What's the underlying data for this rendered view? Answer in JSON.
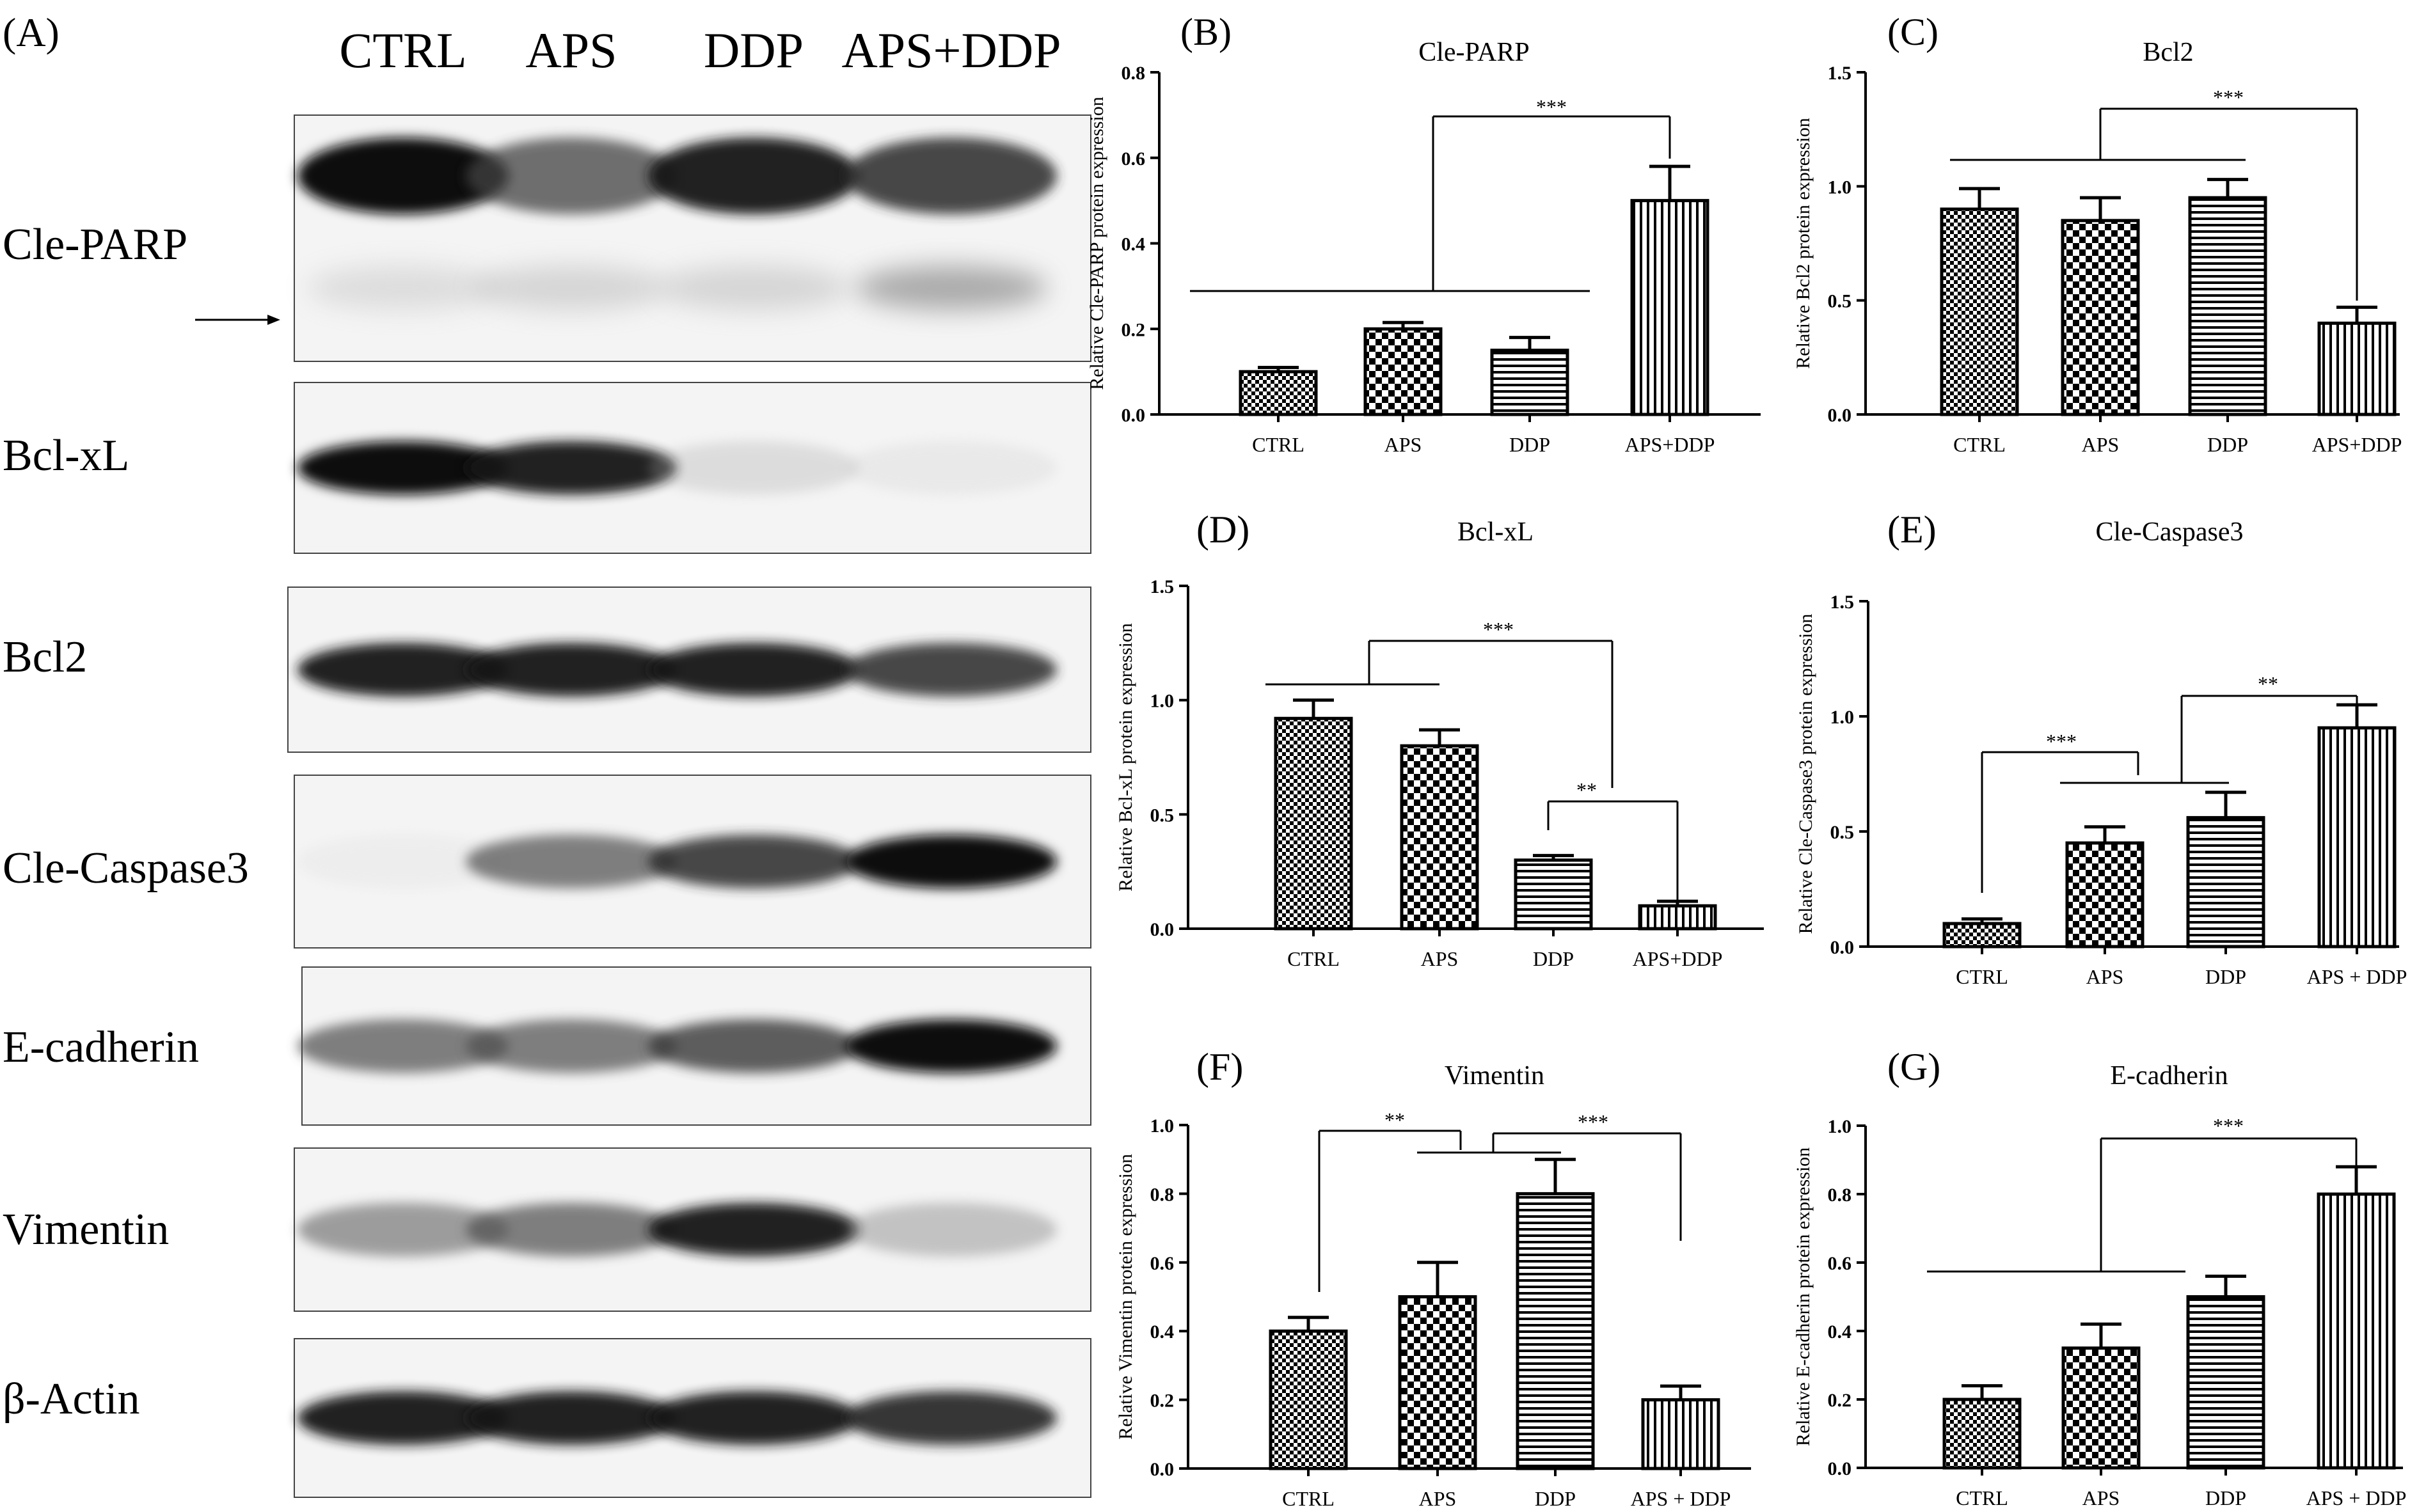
{
  "panel_a": {
    "label": "(A)",
    "columns": [
      "CTRL",
      "APS",
      "DDP",
      "APS+DDP"
    ],
    "rows": [
      {
        "label": "Cle-PARP",
        "intensity": [
          1.0,
          0.75,
          0.95,
          0.85
        ],
        "second_band": [
          0.3,
          0.35,
          0.35,
          0.55
        ],
        "arrow": true
      },
      {
        "label": "Bcl-xL",
        "intensity": [
          1.0,
          0.95,
          0.3,
          0.15
        ],
        "second_band": null,
        "arrow": false
      },
      {
        "label": "Bcl2",
        "intensity": [
          0.95,
          0.95,
          0.95,
          0.85
        ],
        "second_band": null,
        "arrow": false
      },
      {
        "label": "Cle-Caspase3",
        "intensity": [
          0.08,
          0.7,
          0.85,
          1.0
        ],
        "second_band": null,
        "arrow": false
      },
      {
        "label": "E-cadherin",
        "intensity": [
          0.7,
          0.7,
          0.8,
          1.0
        ],
        "second_band": null,
        "arrow": false
      },
      {
        "label": "Vimentin",
        "intensity": [
          0.6,
          0.7,
          0.95,
          0.45
        ],
        "second_band": null,
        "arrow": false
      },
      {
        "label": "β-Actin",
        "intensity": [
          0.95,
          0.95,
          0.95,
          0.9
        ],
        "second_band": null,
        "arrow": false
      }
    ]
  },
  "chart_data": [
    {
      "panel": "(B)",
      "type": "bar",
      "title": "Cle-PARP",
      "ylabel": "Relative Cle-PARP protein expression",
      "xlabel": "",
      "categories": [
        "CTRL",
        "APS",
        "DDP",
        "APS+DDP"
      ],
      "values": [
        0.1,
        0.2,
        0.15,
        0.5
      ],
      "errors": [
        0.01,
        0.015,
        0.03,
        0.08
      ],
      "ylim": [
        0,
        0.8
      ],
      "yticks": [
        "0.0",
        "0.2",
        "0.4",
        "0.6",
        "0.8"
      ],
      "patterns": [
        "checker",
        "checker-large",
        "hlines",
        "vlines"
      ],
      "annotations": [
        "***"
      ]
    },
    {
      "panel": "(C)",
      "type": "bar",
      "title": "Bcl2",
      "ylabel": "Relative Bcl2 protein expression",
      "xlabel": "",
      "categories": [
        "CTRL",
        "APS",
        "DDP",
        "APS+DDP"
      ],
      "values": [
        0.9,
        0.85,
        0.95,
        0.4
      ],
      "errors": [
        0.09,
        0.1,
        0.08,
        0.07
      ],
      "ylim": [
        0,
        1.5
      ],
      "yticks": [
        "0.0",
        "0.5",
        "1.0",
        "1.5"
      ],
      "patterns": [
        "checker",
        "checker-large",
        "hlines",
        "vlines"
      ],
      "annotations": [
        "***"
      ]
    },
    {
      "panel": "(D)",
      "type": "bar",
      "title": "Bcl-xL",
      "ylabel": "Relative Bcl-xL protein expression",
      "xlabel": "",
      "categories": [
        "CTRL",
        "APS",
        "DDP",
        "APS+DDP"
      ],
      "values": [
        0.92,
        0.8,
        0.3,
        0.1
      ],
      "errors": [
        0.08,
        0.07,
        0.02,
        0.02
      ],
      "ylim": [
        0,
        1.5
      ],
      "yticks": [
        "0.0",
        "0.5",
        "1.0",
        "1.5"
      ],
      "patterns": [
        "checker",
        "checker-large",
        "hlines",
        "vlines"
      ],
      "annotations": [
        "***",
        "**"
      ]
    },
    {
      "panel": "(E)",
      "type": "bar",
      "title": "Cle-Caspase3",
      "ylabel": "Relative Cle-Caspase3 protein expression",
      "xlabel": "",
      "categories": [
        "CTRL",
        "APS",
        "DDP",
        "APS + DDP"
      ],
      "values": [
        0.1,
        0.45,
        0.56,
        0.95
      ],
      "errors": [
        0.02,
        0.07,
        0.11,
        0.1
      ],
      "ylim": [
        0,
        1.5
      ],
      "yticks": [
        "0.0",
        "0.5",
        "1.0",
        "1.5"
      ],
      "patterns": [
        "checker",
        "checker-large",
        "hlines",
        "vlines"
      ],
      "annotations": [
        "***",
        "**"
      ]
    },
    {
      "panel": "(F)",
      "type": "bar",
      "title": "Vimentin",
      "ylabel": "Relative Vimentin protein expression",
      "xlabel": "",
      "categories": [
        "CTRL",
        "APS",
        "DDP",
        "APS + DDP"
      ],
      "values": [
        0.4,
        0.5,
        0.8,
        0.2
      ],
      "errors": [
        0.04,
        0.1,
        0.1,
        0.04
      ],
      "ylim": [
        0,
        1.0
      ],
      "yticks": [
        "0.0",
        "0.2",
        "0.4",
        "0.6",
        "0.8",
        "1.0"
      ],
      "patterns": [
        "checker",
        "checker-large",
        "hlines",
        "vlines"
      ],
      "annotations": [
        "**",
        "***"
      ]
    },
    {
      "panel": "(G)",
      "type": "bar",
      "title": "E-cadherin",
      "ylabel": "Relative E-cadherin protein expression",
      "xlabel": "",
      "categories": [
        "CTRL",
        "APS",
        "DDP",
        "APS + DDP"
      ],
      "values": [
        0.2,
        0.35,
        0.5,
        0.8
      ],
      "errors": [
        0.04,
        0.07,
        0.06,
        0.08
      ],
      "ylim": [
        0,
        1.0
      ],
      "yticks": [
        "0.0",
        "0.2",
        "0.4",
        "0.6",
        "0.8",
        "1.0"
      ],
      "patterns": [
        "checker",
        "checker-large",
        "hlines",
        "vlines"
      ],
      "annotations": [
        "***"
      ]
    }
  ]
}
